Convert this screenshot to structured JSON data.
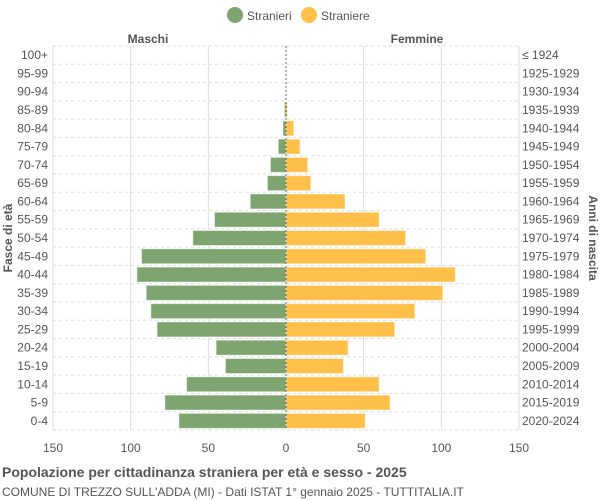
{
  "chart_data": {
    "type": "bar",
    "orientation": "horizontal-pyramid",
    "title": "Popolazione per cittadinanza straniera per età e sesso - 2025",
    "subtitle": "COMUNE DI TREZZO SULL'ADDA (MI) - Dati ISTAT 1° gennaio 2025 - TUTTITALIA.IT",
    "ylabel_left": "Fasce di età",
    "ylabel_right": "Anni di nascita",
    "left_header": "Maschi",
    "right_header": "Femmine",
    "xlim": [
      -150,
      150
    ],
    "xticks": [
      "150",
      "100",
      "50",
      "0",
      "50",
      "100",
      "150"
    ],
    "grid": true,
    "legend_position": "top",
    "categories": [
      "100+",
      "95-99",
      "90-94",
      "85-89",
      "80-84",
      "75-79",
      "70-74",
      "65-69",
      "60-64",
      "55-59",
      "50-54",
      "45-49",
      "40-44",
      "35-39",
      "30-34",
      "25-29",
      "20-24",
      "15-19",
      "10-14",
      "5-9",
      "0-4"
    ],
    "birth_years": [
      "≤ 1924",
      "1925-1929",
      "1930-1934",
      "1935-1939",
      "1940-1944",
      "1945-1949",
      "1950-1954",
      "1955-1959",
      "1960-1964",
      "1965-1969",
      "1970-1974",
      "1975-1979",
      "1980-1984",
      "1985-1989",
      "1990-1994",
      "1995-1999",
      "2000-2004",
      "2005-2009",
      "2010-2014",
      "2015-2019",
      "2020-2024"
    ],
    "series": [
      {
        "name": "Stranieri",
        "color": "#7ea46f",
        "values": [
          0,
          0,
          0,
          1,
          2,
          5,
          10,
          12,
          23,
          46,
          60,
          93,
          96,
          90,
          87,
          83,
          45,
          39,
          64,
          78,
          69
        ]
      },
      {
        "name": "Straniere",
        "color": "#ffc04a",
        "values": [
          0,
          0,
          0,
          1,
          5,
          9,
          14,
          16,
          38,
          60,
          77,
          90,
          109,
          101,
          83,
          70,
          40,
          37,
          60,
          67,
          51
        ]
      }
    ]
  }
}
